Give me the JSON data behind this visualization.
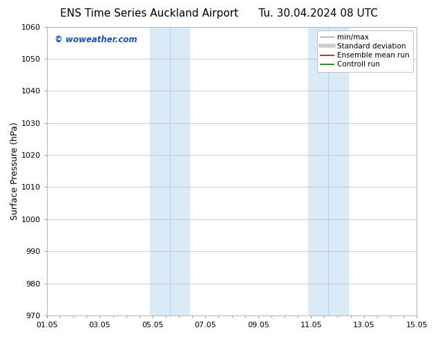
{
  "title": "ENS Time Series Auckland Airport      Tu. 30.04.2024 08 UTC",
  "ylabel": "Surface Pressure (hPa)",
  "xlabel": "",
  "ylim": [
    970,
    1060
  ],
  "yticks": [
    970,
    980,
    990,
    1000,
    1010,
    1020,
    1030,
    1040,
    1050,
    1060
  ],
  "xtick_labels": [
    "01.05",
    "03.05",
    "05.05",
    "07.05",
    "09.05",
    "11.05",
    "13.05",
    "15.05"
  ],
  "xtick_positions": [
    0,
    2,
    4,
    6,
    8,
    10,
    12,
    14
  ],
  "xlim": [
    0,
    14
  ],
  "shaded_bands": [
    {
      "x_start": 3.65,
      "x_end": 4.35,
      "color": "#ddedf8"
    },
    {
      "x_start": 4.35,
      "x_end": 5.35,
      "color": "#cce3f5"
    },
    {
      "x_start": 9.65,
      "x_end": 10.35,
      "color": "#ddedf8"
    },
    {
      "x_start": 10.35,
      "x_end": 11.35,
      "color": "#cce3f5"
    }
  ],
  "watermark": "© woweather.com",
  "watermark_color": "#1a4fd6",
  "legend_entries": [
    {
      "label": "min/max",
      "color": "#999999",
      "lw": 1.0,
      "style": "solid"
    },
    {
      "label": "Standard deviation",
      "color": "#cccccc",
      "lw": 4,
      "style": "solid"
    },
    {
      "label": "Ensemble mean run",
      "color": "#cc0000",
      "lw": 1.2,
      "style": "solid"
    },
    {
      "label": "Controll run",
      "color": "#007700",
      "lw": 1.2,
      "style": "solid"
    }
  ],
  "bg_color": "#ffffff",
  "plot_bg_color": "#ffffff",
  "grid_color": "#bbbbbb",
  "title_fontsize": 11,
  "tick_fontsize": 8,
  "ylabel_fontsize": 9
}
